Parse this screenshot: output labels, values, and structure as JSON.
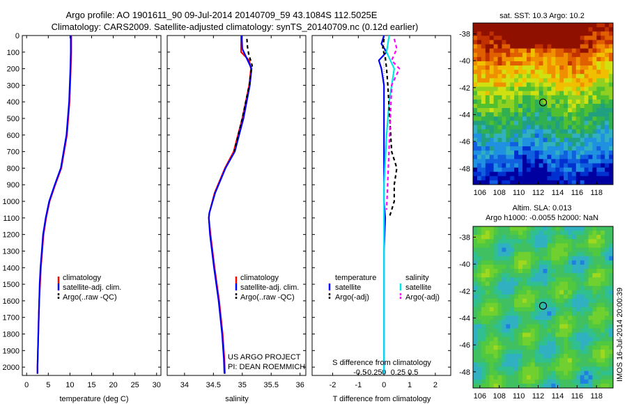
{
  "header": {
    "line1": "Argo profile: AO 1901611_90 09-Jul-2014 20140709_59 43.1084S 112.5025E",
    "line2": "Climatology: CARS2009. Satellite-adjusted climatology: synTS_20140709.nc (0.12d earlier)"
  },
  "colors": {
    "climatology": "#ff0000",
    "satellite": "#0000ff",
    "argo": "#000000",
    "sal_satellite": "#00e5e5",
    "sal_argo": "#ff00ff"
  },
  "chart_data": [
    {
      "type": "line",
      "panel": "temperature",
      "xlabel": "temperature (deg C)",
      "xlim": [
        -1,
        31
      ],
      "ylim": [
        2050,
        0
      ],
      "xticks": [
        0,
        5,
        10,
        15,
        20,
        25,
        30
      ],
      "yticks": [
        0,
        100,
        200,
        300,
        400,
        500,
        600,
        700,
        800,
        900,
        1000,
        1100,
        1200,
        1300,
        1400,
        1500,
        1600,
        1700,
        1800,
        1900,
        2000
      ],
      "legend": [
        "climatology",
        "satellite-adj. clim.",
        "Argo(..raw -QC)"
      ],
      "series": [
        {
          "name": "climatology",
          "color": "#ff0000",
          "points": [
            [
              10.3,
              0
            ],
            [
              10.3,
              100
            ],
            [
              10.2,
              200
            ],
            [
              9.9,
              400
            ],
            [
              9.3,
              600
            ],
            [
              8.0,
              800
            ],
            [
              6.6,
              900
            ],
            [
              5.3,
              1000
            ],
            [
              4.5,
              1100
            ],
            [
              3.9,
              1200
            ],
            [
              3.6,
              1300
            ],
            [
              3.3,
              1400
            ],
            [
              3.1,
              1500
            ],
            [
              2.9,
              1600
            ],
            [
              2.8,
              1700
            ],
            [
              2.7,
              1800
            ],
            [
              2.6,
              1900
            ],
            [
              2.5,
              2000
            ],
            [
              2.5,
              2040
            ]
          ]
        },
        {
          "name": "satellite-adj. clim.",
          "color": "#0000ff",
          "points": [
            [
              10.2,
              0
            ],
            [
              10.2,
              100
            ],
            [
              10.1,
              200
            ],
            [
              9.8,
              400
            ],
            [
              9.2,
              600
            ],
            [
              7.9,
              800
            ],
            [
              6.5,
              900
            ],
            [
              5.2,
              1000
            ],
            [
              4.4,
              1100
            ],
            [
              3.8,
              1200
            ],
            [
              3.5,
              1300
            ],
            [
              3.2,
              1400
            ],
            [
              3.0,
              1500
            ],
            [
              2.9,
              1600
            ],
            [
              2.8,
              1700
            ],
            [
              2.7,
              1800
            ],
            [
              2.6,
              1900
            ],
            [
              2.5,
              2000
            ],
            [
              2.5,
              2040
            ]
          ]
        }
      ]
    },
    {
      "type": "line",
      "panel": "salinity",
      "xlabel": "salinity",
      "xlim": [
        33.7,
        36.1
      ],
      "ylim": [
        2050,
        0
      ],
      "xticks": [
        34,
        34.5,
        35,
        35.5,
        36
      ],
      "legend": [
        "climatology",
        "satellite-adj. clim.",
        "Argo(..raw -QC)"
      ],
      "annotation": [
        "US ARGO PROJECT",
        "PI: DEAN ROEMMICH"
      ],
      "series": [
        {
          "name": "climatology",
          "color": "#ff0000",
          "points": [
            [
              34.98,
              0
            ],
            [
              34.98,
              100
            ],
            [
              35.12,
              150
            ],
            [
              35.15,
              200
            ],
            [
              35.12,
              300
            ],
            [
              35.0,
              500
            ],
            [
              34.85,
              700
            ],
            [
              34.7,
              800
            ],
            [
              34.52,
              950
            ],
            [
              34.43,
              1070
            ],
            [
              34.42,
              1100
            ],
            [
              34.45,
              1200
            ],
            [
              34.52,
              1400
            ],
            [
              34.6,
              1600
            ],
            [
              34.66,
              1800
            ],
            [
              34.69,
              1950
            ],
            [
              34.7,
              2040
            ]
          ]
        },
        {
          "name": "satellite-adj. clim.",
          "color": "#0000ff",
          "points": [
            [
              34.99,
              0
            ],
            [
              35.0,
              80
            ],
            [
              35.16,
              200
            ],
            [
              35.13,
              300
            ],
            [
              35.02,
              500
            ],
            [
              34.87,
              700
            ],
            [
              34.71,
              800
            ],
            [
              34.53,
              950
            ],
            [
              34.43,
              1070
            ],
            [
              34.42,
              1100
            ],
            [
              34.44,
              1200
            ],
            [
              34.51,
              1400
            ],
            [
              34.59,
              1600
            ],
            [
              34.65,
              1800
            ],
            [
              34.68,
              1950
            ],
            [
              34.69,
              2040
            ]
          ]
        },
        {
          "name": "Argo(..raw -QC)",
          "color": "#000000",
          "dashed": true,
          "points": [
            [
              35.08,
              20
            ],
            [
              35.09,
              70
            ],
            [
              35.11,
              110
            ],
            [
              35.17,
              180
            ],
            [
              35.15,
              220
            ],
            [
              35.12,
              300
            ],
            [
              35.0,
              500
            ],
            [
              34.86,
              700
            ]
          ]
        }
      ]
    },
    {
      "type": "line",
      "panel": "difference",
      "xlabel": "T difference from climatology",
      "toplabel": "S difference from climatology",
      "xlim": [
        -2.8,
        2.6
      ],
      "ylim": [
        2050,
        0
      ],
      "xticks": [
        -2,
        -1,
        0,
        1,
        2
      ],
      "top_ticks": [
        "-0.5",
        "-0.25",
        "0",
        "0.25",
        "0.5"
      ],
      "legend_t": [
        "temperature",
        "satellite",
        "Argo(-adj)"
      ],
      "legend_s": [
        "salinity",
        "satellite",
        "Argo(-adj)"
      ],
      "series": [
        {
          "name": "temperature satellite",
          "color": "#0000ff",
          "points": [
            [
              0.0,
              0
            ],
            [
              -0.1,
              50
            ],
            [
              0.1,
              100
            ],
            [
              -0.2,
              150
            ],
            [
              -0.1,
              200
            ],
            [
              0.0,
              300
            ],
            [
              0.0,
              500
            ],
            [
              0.0,
              800
            ],
            [
              0.0,
              1000
            ],
            [
              0.05,
              1100
            ],
            [
              0.0,
              1300
            ],
            [
              0.0,
              1600
            ],
            [
              0.0,
              2040
            ]
          ]
        },
        {
          "name": "salinity satellite",
          "color": "#00e5e5",
          "points": [
            [
              0.2,
              0
            ],
            [
              0.1,
              100
            ],
            [
              0.4,
              200
            ],
            [
              0.2,
              400
            ],
            [
              0.1,
              600
            ],
            [
              0.0,
              900
            ],
            [
              0.0,
              1200
            ],
            [
              0.0,
              1600
            ],
            [
              0.0,
              2040
            ]
          ]
        },
        {
          "name": "Argo(-adj) T",
          "color": "#000000",
          "dashed": true,
          "points": [
            [
              0.0,
              20
            ],
            [
              -0.05,
              80
            ],
            [
              0.05,
              130
            ],
            [
              0.1,
              200
            ],
            [
              0.15,
              300
            ],
            [
              0.3,
              700
            ],
            [
              0.5,
              800
            ],
            [
              0.4,
              900
            ],
            [
              0.4,
              1000
            ],
            [
              0.2,
              1100
            ]
          ]
        },
        {
          "name": "Argo(-adj) S",
          "color": "#ff00ff",
          "dashed": true,
          "points": [
            [
              0.4,
              20
            ],
            [
              0.5,
              80
            ],
            [
              0.3,
              150
            ],
            [
              0.6,
              200
            ],
            [
              0.3,
              300
            ],
            [
              0.1,
              1050
            ]
          ]
        }
      ]
    }
  ],
  "maps": {
    "sst": {
      "title": "sat. SST: 10.3 Argo: 10.2",
      "yticks": [
        "-38",
        "-40",
        "-42",
        "-44",
        "-46",
        "-48"
      ],
      "xticks": [
        "106",
        "108",
        "110",
        "112",
        "114",
        "116",
        "118"
      ]
    },
    "sla": {
      "title1": "Altim. SLA: 0.013",
      "title2": "Argo h1000: -0.0055 h2000: NaN",
      "yticks": [
        "-38",
        "-40",
        "-42",
        "-44",
        "-46",
        "-48"
      ],
      "xticks": [
        "106",
        "108",
        "110",
        "112",
        "114",
        "116",
        "118"
      ]
    }
  },
  "footer": {
    "stamp": "IMOS 16-Jul-2014 20:00:39"
  }
}
